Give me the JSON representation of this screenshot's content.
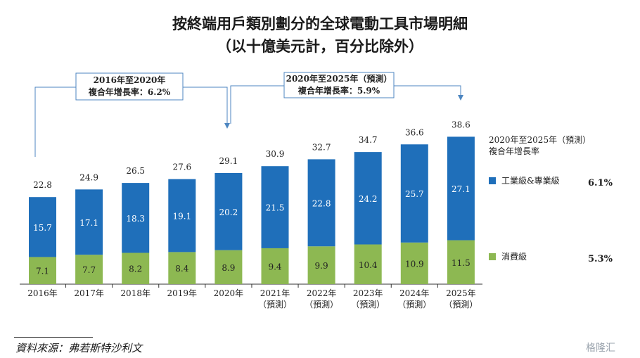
{
  "title_line1": "按終端用戶類別劃分的全球電動工具市場明細",
  "title_line2": "（以十億美元計，百分比除外）",
  "callout_left": {
    "line1": "2016年至2020年",
    "line2": "複合年增長率：6.2%"
  },
  "callout_right": {
    "line1": "2020年至2025年（預測）",
    "line2": "複合年增長率：5.9%"
  },
  "legend": {
    "header_line1": "2020年至2025年（預測）",
    "header_line2": "複合年增長率",
    "items": [
      {
        "label": "工業級&專業級",
        "rate": "6.1%",
        "color": "#1f6fba"
      },
      {
        "label": "消費級",
        "rate": "5.3%",
        "color": "#8db852"
      }
    ]
  },
  "source": "資料來源：弗若斯特沙利文",
  "watermark": "格隆汇",
  "chart_data": {
    "type": "bar",
    "stacked": true,
    "categories": [
      [
        "2016年"
      ],
      [
        "2017年"
      ],
      [
        "2018年"
      ],
      [
        "2019年"
      ],
      [
        "2020年"
      ],
      [
        "2021年",
        "（預測）"
      ],
      [
        "2022年",
        "（預測）"
      ],
      [
        "2023年",
        "（預測）"
      ],
      [
        "2024年",
        "（預測）"
      ],
      [
        "2025年",
        "（預測）"
      ]
    ],
    "totals": [
      "22.8",
      "24.9",
      "26.5",
      "27.6",
      "29.1",
      "30.9",
      "32.7",
      "34.7",
      "36.6",
      "38.6"
    ],
    "series": [
      {
        "name": "消費級",
        "color": "#8db852",
        "values": [
          7.1,
          7.7,
          8.2,
          8.4,
          8.9,
          9.4,
          9.9,
          10.4,
          10.9,
          11.5
        ],
        "labels": [
          "7.1",
          "7.7",
          "8.2",
          "8.4",
          "8.9",
          "9.4",
          "9.9",
          "10.4",
          "10.9",
          "11.5"
        ]
      },
      {
        "name": "工業級&專業級",
        "color": "#1f6fba",
        "values": [
          15.7,
          17.1,
          18.3,
          19.1,
          20.2,
          21.5,
          22.8,
          24.2,
          25.7,
          27.1
        ],
        "labels": [
          "15.7",
          "17.1",
          "18.3",
          "19.1",
          "20.2",
          "21.5",
          "22.8",
          "24.2",
          "25.7",
          "27.1"
        ]
      }
    ]
  }
}
